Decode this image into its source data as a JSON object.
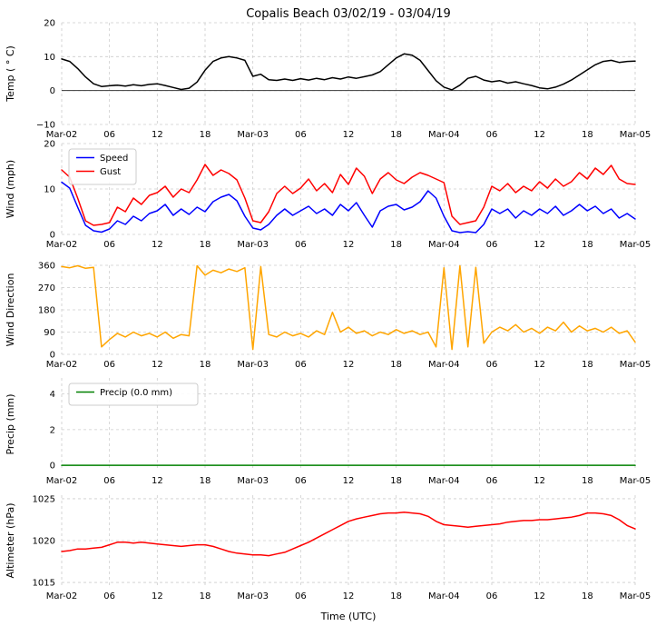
{
  "figure": {
    "title": "Copalis Beach 03/02/19 - 03/04/19",
    "xlabel": "Time (UTC)",
    "xtick_hours": [
      0,
      6,
      12,
      18,
      24,
      30,
      36,
      42,
      48,
      54,
      60,
      66,
      72
    ],
    "xtick_labels": [
      "Mar-02",
      "06",
      "12",
      "18",
      "Mar-03",
      "06",
      "12",
      "18",
      "Mar-04",
      "06",
      "12",
      "18",
      "Mar-05"
    ],
    "x_hours": [
      0,
      1,
      2,
      3,
      4,
      5,
      6,
      7,
      8,
      9,
      10,
      11,
      12,
      13,
      14,
      15,
      16,
      17,
      18,
      19,
      20,
      21,
      22,
      23,
      24,
      25,
      26,
      27,
      28,
      29,
      30,
      31,
      32,
      33,
      34,
      35,
      36,
      37,
      38,
      39,
      40,
      41,
      42,
      43,
      44,
      45,
      46,
      47,
      48,
      49,
      50,
      51,
      52,
      53,
      54,
      55,
      56,
      57,
      58,
      59,
      60,
      61,
      62,
      63,
      64,
      65,
      66,
      67,
      68,
      69,
      70,
      71,
      72
    ],
    "background_color": "#ffffff",
    "grid_color": "#cccccc"
  },
  "chart_data": [
    {
      "type": "line",
      "name": "temperature",
      "ylabel": "Temp ( ° C)",
      "ylim": [
        -10,
        20
      ],
      "ytick_values": [
        20,
        10,
        0,
        -10
      ],
      "ytick_labels": [
        "20",
        "10",
        "0",
        "−10"
      ],
      "axhline": 0,
      "grid": true,
      "series": [
        {
          "name": "Temp",
          "color": "#000000",
          "values": [
            9.3,
            8.6,
            6.5,
            4.0,
            2.0,
            1.2,
            1.4,
            1.6,
            1.3,
            1.7,
            1.4,
            1.8,
            2.0,
            1.5,
            0.9,
            0.3,
            0.7,
            2.5,
            6.0,
            8.6,
            9.6,
            10.0,
            9.6,
            8.9,
            4.2,
            4.8,
            3.2,
            3.0,
            3.4,
            3.0,
            3.5,
            3.1,
            3.6,
            3.2,
            3.8,
            3.4,
            4.0,
            3.6,
            4.1,
            4.6,
            5.6,
            7.6,
            9.6,
            10.8,
            10.4,
            8.9,
            5.9,
            2.9,
            1.0,
            0.2,
            1.6,
            3.6,
            4.2,
            3.1,
            2.6,
            2.9,
            2.2,
            2.6,
            2.0,
            1.5,
            0.8,
            0.5,
            1.0,
            1.9,
            3.1,
            4.6,
            6.1,
            7.6,
            8.6,
            8.9,
            8.3,
            8.6,
            8.7
          ]
        }
      ]
    },
    {
      "type": "line",
      "name": "wind",
      "ylabel": "Wind (mph)",
      "ylim": [
        0,
        20
      ],
      "ytick_values": [
        20,
        10,
        0
      ],
      "ytick_labels": [
        "20",
        "10",
        "0"
      ],
      "grid": true,
      "legend": {
        "loc": "upper-left",
        "entries": [
          "Speed",
          "Gust"
        ]
      },
      "series": [
        {
          "name": "Speed",
          "color": "#0000ff",
          "values": [
            11.5,
            10.2,
            6.0,
            2.0,
            0.8,
            0.5,
            1.2,
            3.0,
            2.2,
            4.0,
            3.0,
            4.6,
            5.2,
            6.6,
            4.2,
            5.6,
            4.4,
            6.0,
            5.0,
            7.2,
            8.2,
            8.8,
            7.4,
            4.0,
            1.4,
            1.0,
            2.2,
            4.2,
            5.6,
            4.2,
            5.2,
            6.2,
            4.6,
            5.6,
            4.2,
            6.6,
            5.2,
            7.0,
            4.2,
            1.6,
            5.2,
            6.2,
            6.6,
            5.4,
            6.0,
            7.2,
            9.6,
            8.0,
            4.0,
            0.8,
            0.4,
            0.6,
            0.4,
            2.2,
            5.6,
            4.6,
            5.6,
            3.6,
            5.2,
            4.2,
            5.6,
            4.6,
            6.2,
            4.2,
            5.2,
            6.6,
            5.2,
            6.2,
            4.6,
            5.6,
            3.6,
            4.6,
            3.4
          ]
        },
        {
          "name": "Gust",
          "color": "#ff0000",
          "values": [
            14.2,
            12.6,
            8.0,
            3.0,
            2.0,
            2.2,
            2.6,
            6.0,
            5.0,
            8.0,
            6.6,
            8.6,
            9.2,
            10.6,
            8.2,
            10.0,
            9.2,
            12.0,
            15.4,
            13.0,
            14.2,
            13.4,
            12.0,
            8.0,
            3.0,
            2.6,
            5.0,
            9.0,
            10.6,
            9.0,
            10.2,
            12.2,
            9.6,
            11.2,
            9.2,
            13.2,
            11.0,
            14.6,
            12.8,
            9.0,
            12.2,
            13.6,
            12.0,
            11.2,
            12.6,
            13.6,
            13.0,
            12.2,
            11.4,
            4.0,
            2.2,
            2.6,
            3.0,
            6.0,
            10.6,
            9.6,
            11.2,
            9.2,
            10.6,
            9.6,
            11.6,
            10.2,
            12.2,
            10.6,
            11.6,
            13.6,
            12.2,
            14.6,
            13.2,
            15.2,
            12.2,
            11.2,
            11.0
          ]
        }
      ]
    },
    {
      "type": "line",
      "name": "wind-direction",
      "ylabel": "Wind Direction",
      "ylim": [
        0,
        360
      ],
      "ytick_values": [
        360,
        270,
        180,
        90,
        0
      ],
      "ytick_labels": [
        "360",
        "270",
        "180",
        "90",
        "0"
      ],
      "grid": true,
      "series": [
        {
          "name": "Direction",
          "color": "#ffa500",
          "values": [
            355,
            350,
            358,
            348,
            352,
            30,
            60,
            85,
            70,
            90,
            75,
            85,
            70,
            90,
            65,
            80,
            75,
            358,
            320,
            340,
            330,
            345,
            335,
            350,
            20,
            355,
            80,
            70,
            90,
            75,
            85,
            70,
            95,
            80,
            170,
            90,
            110,
            85,
            95,
            75,
            90,
            80,
            100,
            85,
            95,
            80,
            90,
            30,
            350,
            20,
            358,
            30,
            352,
            45,
            90,
            110,
            95,
            120,
            90,
            105,
            85,
            110,
            95,
            130,
            90,
            115,
            95,
            105,
            90,
            110,
            85,
            95,
            50
          ]
        }
      ]
    },
    {
      "type": "line",
      "name": "precip",
      "ylabel": "Precip (mm)",
      "ylim": [
        -0.3,
        4.9
      ],
      "ytick_values": [
        4,
        2,
        0
      ],
      "ytick_labels": [
        "4",
        "2",
        "0"
      ],
      "grid": true,
      "legend": {
        "loc": "upper-left",
        "entries": [
          "Precip (0.0 mm)"
        ]
      },
      "series": [
        {
          "name": "Precip (0.0 mm)",
          "color": "#008000",
          "values": [
            0,
            0,
            0,
            0,
            0,
            0,
            0,
            0,
            0,
            0,
            0,
            0,
            0,
            0,
            0,
            0,
            0,
            0,
            0,
            0,
            0,
            0,
            0,
            0,
            0,
            0,
            0,
            0,
            0,
            0,
            0,
            0,
            0,
            0,
            0,
            0,
            0,
            0,
            0,
            0,
            0,
            0,
            0,
            0,
            0,
            0,
            0,
            0,
            0,
            0,
            0,
            0,
            0,
            0,
            0,
            0,
            0,
            0,
            0,
            0,
            0,
            0,
            0,
            0,
            0,
            0,
            0,
            0,
            0,
            0,
            0,
            0,
            0
          ]
        }
      ]
    },
    {
      "type": "line",
      "name": "altimeter",
      "ylabel": "Altimeter (hPa)",
      "ylim": [
        1014.57,
        1025.43
      ],
      "ytick_values": [
        1025,
        1020,
        1015
      ],
      "ytick_labels": [
        "1025",
        "1020",
        "1015"
      ],
      "grid": true,
      "series": [
        {
          "name": "Altimeter",
          "color": "#ff0000",
          "values": [
            1018.7,
            1018.8,
            1019.0,
            1019.0,
            1019.1,
            1019.2,
            1019.5,
            1019.8,
            1019.8,
            1019.7,
            1019.8,
            1019.7,
            1019.6,
            1019.5,
            1019.4,
            1019.3,
            1019.4,
            1019.5,
            1019.5,
            1019.3,
            1019.0,
            1018.7,
            1018.5,
            1018.4,
            1018.3,
            1018.3,
            1018.2,
            1018.4,
            1018.6,
            1019.0,
            1019.4,
            1019.8,
            1020.3,
            1020.8,
            1021.3,
            1021.8,
            1022.3,
            1022.6,
            1022.8,
            1023.0,
            1023.2,
            1023.3,
            1023.3,
            1023.4,
            1023.3,
            1023.2,
            1022.9,
            1022.3,
            1021.9,
            1021.8,
            1021.7,
            1021.6,
            1021.7,
            1021.8,
            1021.9,
            1022.0,
            1022.2,
            1022.3,
            1022.4,
            1022.4,
            1022.5,
            1022.5,
            1022.6,
            1022.7,
            1022.8,
            1023.0,
            1023.3,
            1023.3,
            1023.2,
            1023.0,
            1022.5,
            1021.8,
            1021.4
          ]
        }
      ]
    }
  ]
}
